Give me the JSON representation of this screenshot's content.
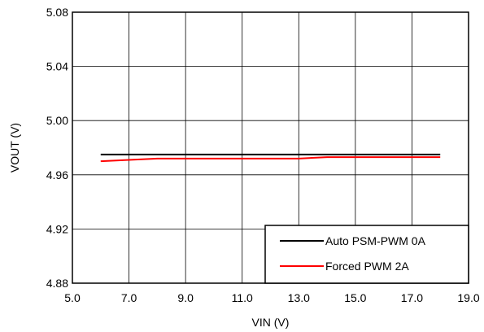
{
  "chart_data": {
    "type": "line",
    "title": "",
    "xlabel": "VIN (V)",
    "ylabel": "VOUT (V)",
    "xlim": [
      5.0,
      19.0
    ],
    "ylim": [
      4.88,
      5.08
    ],
    "x_ticks": [
      "5.0",
      "7.0",
      "9.0",
      "11.0",
      "13.0",
      "15.0",
      "17.0",
      "19.0"
    ],
    "y_ticks": [
      "5.08",
      "5.04",
      "5.00",
      "4.96",
      "4.92",
      "4.88"
    ],
    "grid": true,
    "legend_position": "bottom-right",
    "series": [
      {
        "name": "Auto PSM-PWM 0A",
        "color": "#000000",
        "points": [
          [
            6.0,
            4.975
          ],
          [
            8.0,
            4.975
          ],
          [
            10.0,
            4.975
          ],
          [
            12.0,
            4.975
          ],
          [
            14.0,
            4.975
          ],
          [
            16.0,
            4.975
          ],
          [
            18.0,
            4.975
          ]
        ]
      },
      {
        "name": "Forced PWM 2A",
        "color": "#ff0000",
        "points": [
          [
            6.0,
            4.97
          ],
          [
            7.0,
            4.971
          ],
          [
            8.0,
            4.972
          ],
          [
            9.0,
            4.972
          ],
          [
            10.0,
            4.972
          ],
          [
            11.0,
            4.972
          ],
          [
            12.0,
            4.972
          ],
          [
            13.0,
            4.972
          ],
          [
            14.0,
            4.973
          ],
          [
            15.0,
            4.973
          ],
          [
            16.0,
            4.973
          ],
          [
            17.0,
            4.973
          ],
          [
            18.0,
            4.973
          ]
        ]
      }
    ]
  }
}
